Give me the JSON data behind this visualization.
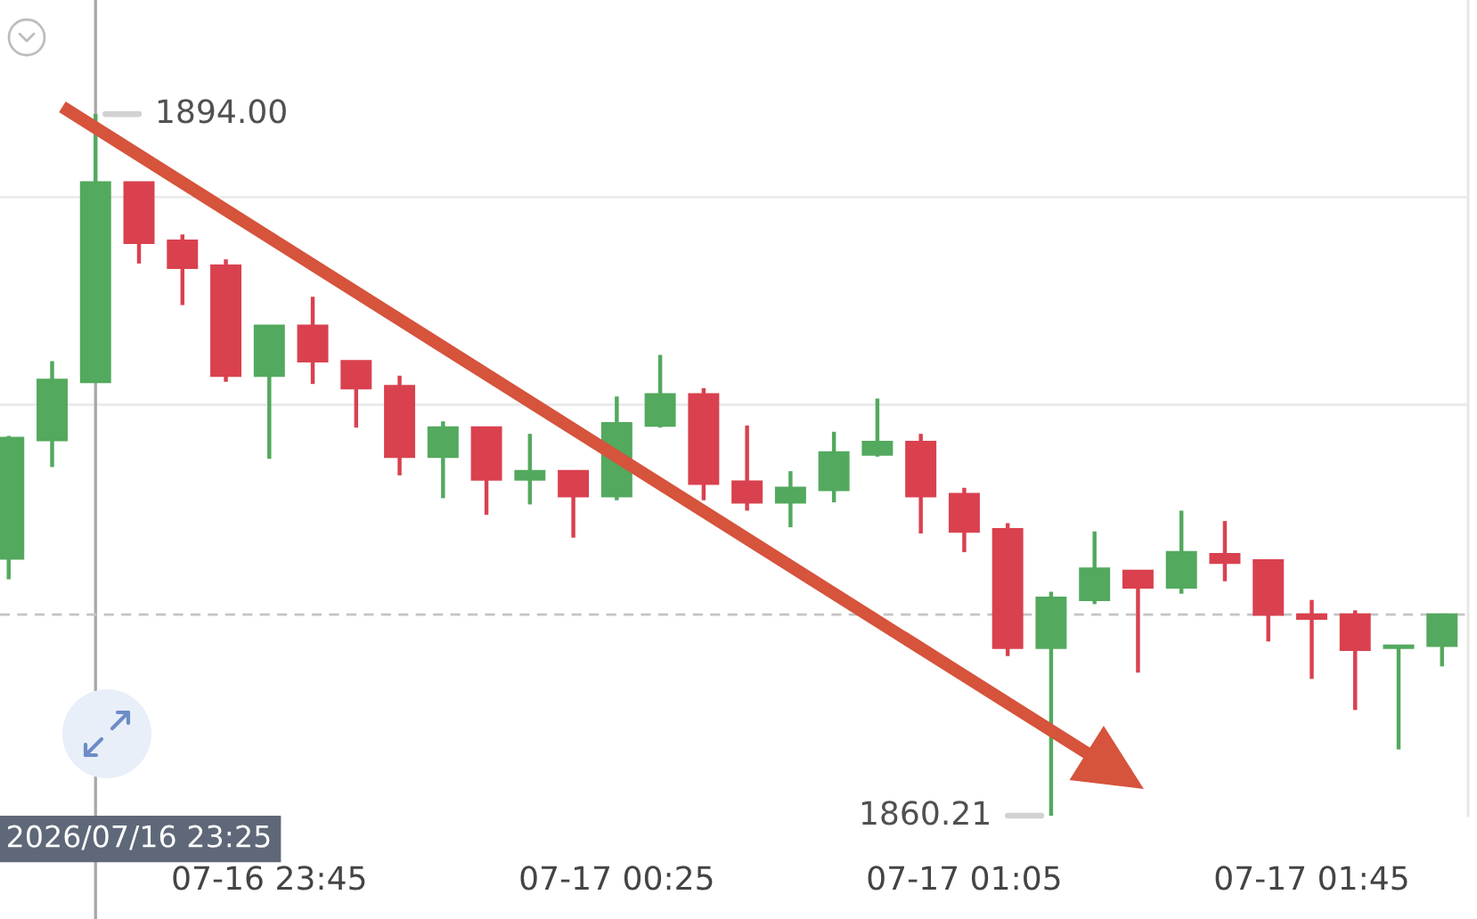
{
  "chart_data": {
    "type": "candlestick",
    "x": [
      "2026-07-16T23:15",
      "2026-07-16T23:20",
      "2026-07-16T23:25",
      "2026-07-16T23:30",
      "2026-07-16T23:35",
      "2026-07-16T23:40",
      "2026-07-16T23:45",
      "2026-07-16T23:50",
      "2026-07-16T23:55",
      "2026-07-17T00:00",
      "2026-07-17T00:05",
      "2026-07-17T00:10",
      "2026-07-17T00:15",
      "2026-07-17T00:20",
      "2026-07-17T00:25",
      "2026-07-17T00:30",
      "2026-07-17T00:35",
      "2026-07-17T00:40",
      "2026-07-17T00:45",
      "2026-07-17T00:50",
      "2026-07-17T00:55",
      "2026-07-17T01:00",
      "2026-07-17T01:05",
      "2026-07-17T01:10",
      "2026-07-17T01:15",
      "2026-07-17T01:20",
      "2026-07-17T01:25",
      "2026-07-17T01:30",
      "2026-07-17T01:35",
      "2026-07-17T01:40",
      "2026-07-17T01:45",
      "2026-07-17T01:50",
      "2026-07-17T01:55",
      "2026-07-17T02:00"
    ],
    "ohlc": [
      [
        1872.6,
        1878.5,
        1871.6,
        1878.4
      ],
      [
        1878.3,
        1882.1,
        1877.0,
        1881.2
      ],
      [
        1881.1,
        1894.0,
        1881.1,
        1890.7
      ],
      [
        1890.7,
        1890.7,
        1886.8,
        1887.8
      ],
      [
        1887.9,
        1888.2,
        1884.8,
        1886.6
      ],
      [
        1886.7,
        1887.0,
        1881.1,
        1881.4
      ],
      [
        1881.4,
        1883.8,
        1877.4,
        1883.8
      ],
      [
        1883.8,
        1885.2,
        1881.0,
        1882.1
      ],
      [
        1882.1,
        1882.1,
        1878.9,
        1880.8
      ],
      [
        1880.9,
        1881.4,
        1876.6,
        1877.5
      ],
      [
        1877.5,
        1879.2,
        1875.5,
        1878.9
      ],
      [
        1878.9,
        1878.9,
        1874.7,
        1876.4
      ],
      [
        1876.4,
        1878.6,
        1875.2,
        1876.8
      ],
      [
        1876.8,
        1876.8,
        1873.6,
        1875.6
      ],
      [
        1875.6,
        1880.4,
        1875.4,
        1879.1
      ],
      [
        1879.0,
        1882.4,
        1878.9,
        1880.5
      ],
      [
        1880.5,
        1880.8,
        1875.4,
        1876.2
      ],
      [
        1876.3,
        1879.0,
        1874.9,
        1875.3
      ],
      [
        1875.3,
        1876.8,
        1874.1,
        1876.0
      ],
      [
        1875.9,
        1878.7,
        1875.3,
        1877.7
      ],
      [
        1877.6,
        1880.3,
        1877.5,
        1878.2
      ],
      [
        1878.2,
        1878.6,
        1873.8,
        1875.6
      ],
      [
        1875.7,
        1876.0,
        1872.9,
        1873.9
      ],
      [
        1874.0,
        1874.3,
        1867.9,
        1868.3
      ],
      [
        1868.3,
        1871.0,
        1860.21,
        1870.7
      ],
      [
        1870.6,
        1873.9,
        1870.4,
        1872.1
      ],
      [
        1872.0,
        1872.0,
        1867.1,
        1871.2
      ],
      [
        1871.2,
        1874.9,
        1870.9,
        1872.9
      ],
      [
        1872.8,
        1874.4,
        1871.5,
        1872.4
      ],
      [
        1872.5,
        1872.5,
        1868.6,
        1869.9
      ],
      [
        1869.9,
        1870.6,
        1866.8,
        1869.7
      ],
      [
        1869.9,
        1870.1,
        1865.3,
        1868.2
      ],
      [
        1868.3,
        1868.4,
        1863.4,
        1868.4
      ],
      [
        1868.4,
        1869.9,
        1867.4,
        1869.9
      ]
    ],
    "colors": [
      "#53a95e",
      "#53a95e",
      "#53a95e",
      "#d9414f",
      "#d9414f",
      "#d9414f",
      "#53a95e",
      "#d9414f",
      "#d9414f",
      "#d9414f",
      "#53a95e",
      "#d9414f",
      "#53a95e",
      "#d9414f",
      "#53a95e",
      "#53a95e",
      "#d9414f",
      "#d9414f",
      "#53a95e",
      "#53a95e",
      "#53a95e",
      "#d9414f",
      "#d9414f",
      "#d9414f",
      "#53a95e",
      "#53a95e",
      "#d9414f",
      "#53a95e",
      "#d9414f",
      "#d9414f",
      "#d9414f",
      "#d9414f",
      "#53a95e",
      "#53a95e"
    ],
    "xlim": [
      "2026-07-16T23:14",
      "2026-07-17T02:03"
    ],
    "xticks": [
      {
        "value": "2026-07-16T23:45",
        "label": "07-16 23:45"
      },
      {
        "value": "2026-07-17T00:25",
        "label": "07-17 00:25"
      },
      {
        "value": "2026-07-17T01:05",
        "label": "07-17 01:05"
      },
      {
        "value": "2026-07-17T01:45",
        "label": "07-17 01:45"
      }
    ],
    "yticks": [
      {
        "value": 1880,
        "label": null
      },
      {
        "value": 1890,
        "label": null
      }
    ],
    "tick_labels": "x",
    "grid": "y",
    "ref_lines": [
      {
        "axis": "x",
        "value": "2026-07-16T23:25",
        "label": "2026/07/16 23:25",
        "color": "#a8a8a8",
        "line_style": "solid"
      },
      {
        "axis": "y",
        "value": 1869.9,
        "color": "#c4c4c4",
        "line_style": "dashed"
      }
    ],
    "annotations": [
      {
        "text": "1894.00",
        "x": "2026-07-16T23:25",
        "y": 1894.0
      },
      {
        "text": "1860.21",
        "x": "2026-07-17T01:15",
        "y": 1860.21
      }
    ]
  }
}
